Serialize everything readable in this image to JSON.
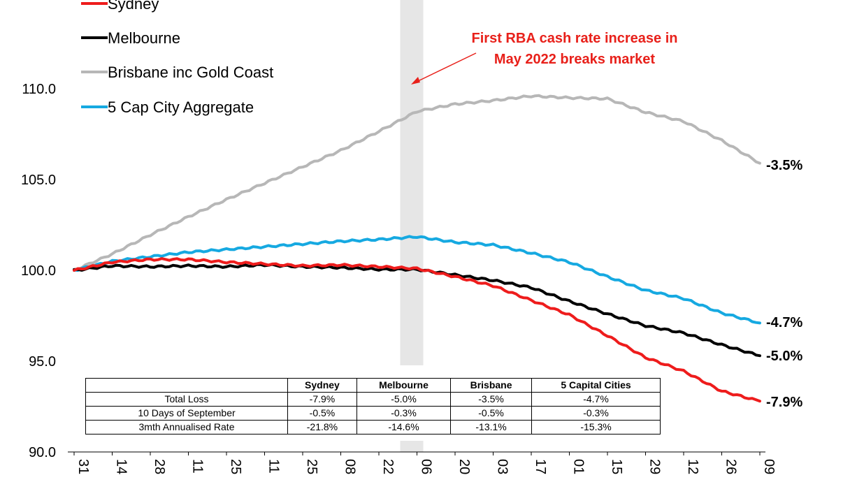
{
  "chart_data": {
    "type": "line",
    "ylim": [
      90,
      110
    ],
    "yticks": [
      "90.0",
      "95.0",
      "100.0",
      "105.0",
      "110.0"
    ],
    "x_tick_labels": [
      "31",
      "14",
      "28",
      "11",
      "25",
      "11",
      "25",
      "08",
      "22",
      "06",
      "20",
      "03",
      "17",
      "01",
      "15",
      "29",
      "12",
      "26",
      "09"
    ],
    "grid": false,
    "legend_position": "top-left",
    "series": [
      {
        "name": "Sydney",
        "color": "#ee1c1c",
        "end_label": "-7.9%",
        "values": [
          100.0,
          100.45,
          100.6,
          100.6,
          100.45,
          100.35,
          100.25,
          100.3,
          100.2,
          100.1,
          99.65,
          99.15,
          98.35,
          97.55,
          96.4,
          95.2,
          94.45,
          93.35,
          92.8
        ]
      },
      {
        "name": "Melbourne",
        "color": "#000000",
        "end_label": "-5.0%",
        "values": [
          100.0,
          100.25,
          100.2,
          100.25,
          100.2,
          100.3,
          100.2,
          100.15,
          100.05,
          100.05,
          99.75,
          99.45,
          99.05,
          98.3,
          97.6,
          96.95,
          96.55,
          95.9,
          95.3
        ]
      },
      {
        "name": "Brisbane inc Gold Coast",
        "color": "#b7b7b7",
        "end_label": "-3.5%",
        "values": [
          100.0,
          100.9,
          101.95,
          102.95,
          103.9,
          104.8,
          105.7,
          106.6,
          107.65,
          108.75,
          109.15,
          109.35,
          109.6,
          109.5,
          109.45,
          108.7,
          108.2,
          107.15,
          105.9
        ]
      },
      {
        "name": "5 Cap City Aggregate",
        "color": "#16a9e1",
        "end_label": "-4.7%",
        "values": [
          100.0,
          100.5,
          100.75,
          101.0,
          101.15,
          101.3,
          101.45,
          101.6,
          101.7,
          101.85,
          101.55,
          101.4,
          100.95,
          100.45,
          99.65,
          98.9,
          98.45,
          97.65,
          97.1
        ]
      }
    ],
    "annotation": {
      "lines": [
        "First RBA cash rate increase in",
        "May 2022 breaks market"
      ],
      "color": "#e8201a"
    },
    "shaded_band_at_x_label": "06",
    "table": {
      "columns": [
        "",
        "Sydney",
        "Melbourne",
        "Brisbane",
        "5 Capital Cities"
      ],
      "rows": [
        {
          "label": "Total Loss",
          "values": [
            "-7.9%",
            "-5.0%",
            "-3.5%",
            "-4.7%"
          ]
        },
        {
          "label": "10 Days of September",
          "values": [
            "-0.5%",
            "-0.3%",
            "-0.5%",
            "-0.3%"
          ]
        },
        {
          "label": "3mth Annualised Rate",
          "values": [
            "-21.8%",
            "-14.6%",
            "-13.1%",
            "-15.3%"
          ]
        }
      ]
    }
  }
}
